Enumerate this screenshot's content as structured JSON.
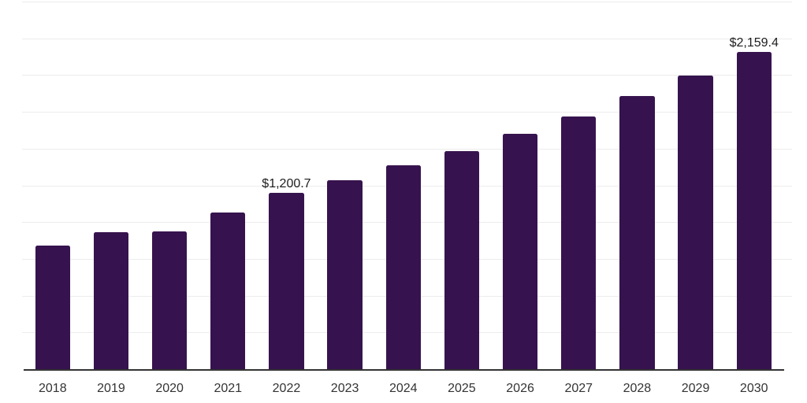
{
  "chart_data": {
    "type": "bar",
    "title": "",
    "xlabel": "",
    "ylabel": "",
    "categories": [
      "2018",
      "2019",
      "2020",
      "2021",
      "2022",
      "2023",
      "2024",
      "2025",
      "2026",
      "2027",
      "2028",
      "2029",
      "2030"
    ],
    "values": [
      840,
      931,
      937,
      1067,
      1200.7,
      1285,
      1386,
      1483,
      1600,
      1717,
      1856,
      1997,
      2159.4
    ],
    "point_labels": [
      "",
      "",
      "",
      "",
      "$1,200.7",
      "",
      "",
      "",
      "",
      "",
      "",
      "",
      "$2,159.4"
    ],
    "ylim": [
      0,
      2500
    ],
    "grid_step": 250,
    "grid": "horizontal",
    "legend": false,
    "y_axis_labels_visible": false,
    "colors": {
      "bar": "#36134E",
      "gridline": "#ececec",
      "axis_line": "#333333",
      "tick_text": "#333333",
      "label_text": "#1d1d1d",
      "background": "#ffffff"
    }
  }
}
